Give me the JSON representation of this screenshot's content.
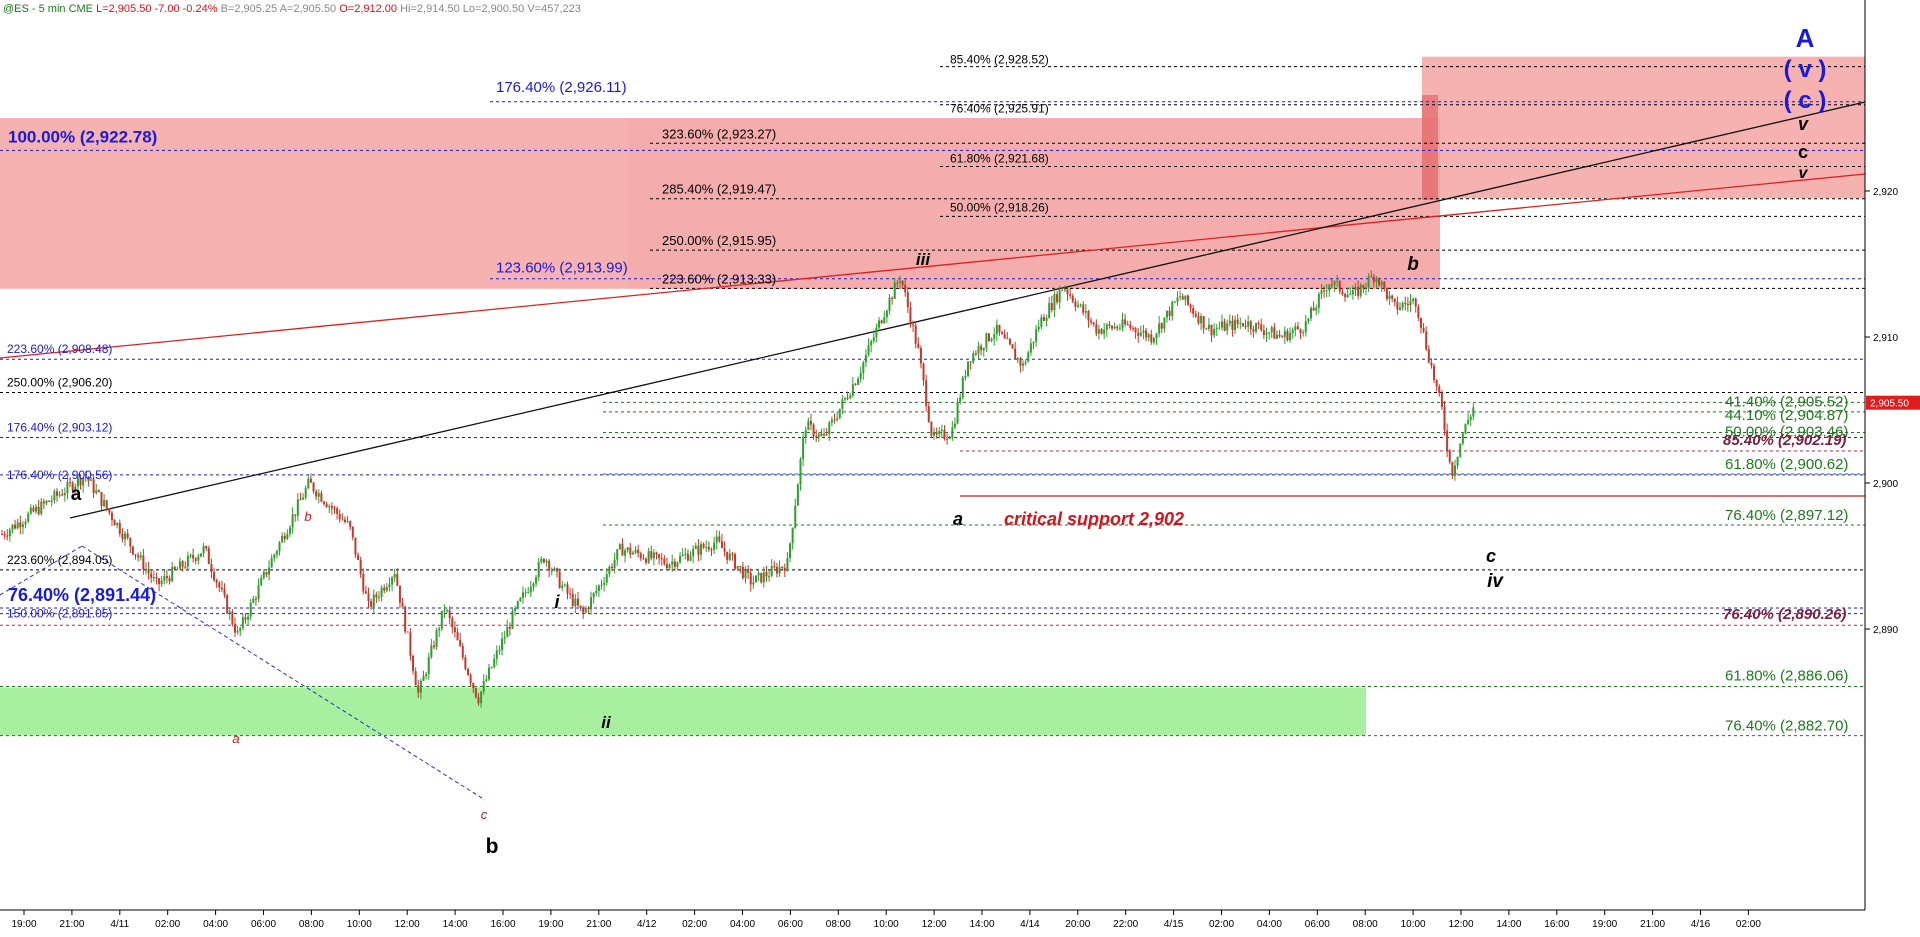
{
  "header": {
    "symbol": "@ES - 5 min",
    "exchange": "CME",
    "last": "L=2,905.50",
    "change": "-7.00",
    "pct": "-0.24%",
    "bid": "B=2,905.25",
    "ask": "A=2,905.50",
    "open": "O=2,912.00",
    "high": "Hi=2,914.50",
    "low": "Lo=2,900.50",
    "volume": "V=457,223"
  },
  "colors": {
    "up_candle": "#2e9e2e",
    "down_candle": "#c0392b",
    "resistance_zone": "#f4a3a3",
    "support_zone": "#a8f0a0",
    "blue_label": "#1a1adb",
    "green_label": "#1c7a1c",
    "maroon_label": "#7a1f3c",
    "red_label": "#d4141c",
    "price_tag": "#e01c1c"
  },
  "chart_data": {
    "type": "candlestick",
    "y_axis": {
      "ticks": [
        2890,
        2900,
        2910,
        2920
      ],
      "tick_labels": [
        "2,890",
        "2,900",
        "2,910",
        "2,920"
      ],
      "ylim": [
        2881,
        2932
      ]
    },
    "x_axis": {
      "tick_labels": [
        "19:00",
        "21:00",
        "4/11",
        "02:00",
        "04:00",
        "06:00",
        "08:00",
        "10:00",
        "12:00",
        "14:00",
        "16:00",
        "19:00",
        "21:00",
        "4/12",
        "02:00",
        "04:00",
        "06:00",
        "08:00",
        "10:00",
        "12:00",
        "14:00",
        "4/14",
        "20:00",
        "22:00",
        "4/15",
        "02:00",
        "04:00",
        "06:00",
        "08:00",
        "10:00",
        "12:00",
        "14:00",
        "16:00",
        "19:00",
        "21:00",
        "4/16",
        "02:00"
      ]
    },
    "last_price": {
      "value": 2905.5,
      "label": "2,905.50"
    },
    "price_path": [
      [
        0,
        2896.5
      ],
      [
        70,
        2900.5
      ],
      [
        130,
        2893.0
      ],
      [
        170,
        2895.5
      ],
      [
        198,
        2889.6
      ],
      [
        228,
        2895.0
      ],
      [
        258,
        2900.0
      ],
      [
        292,
        2897.0
      ],
      [
        308,
        2891.5
      ],
      [
        330,
        2894.0
      ],
      [
        350,
        2885.5
      ],
      [
        372,
        2891.5
      ],
      [
        400,
        2885.2
      ],
      [
        430,
        2891.0
      ],
      [
        456,
        2895.0
      ],
      [
        470,
        2893.0
      ],
      [
        488,
        2891.0
      ],
      [
        520,
        2895.5
      ],
      [
        560,
        2894.5
      ],
      [
        600,
        2896.0
      ],
      [
        630,
        2893.2
      ],
      [
        660,
        2894.5
      ],
      [
        675,
        2904.0
      ],
      [
        690,
        2903.0
      ],
      [
        720,
        2907.5
      ],
      [
        740,
        2911.5
      ],
      [
        755,
        2914.2
      ],
      [
        770,
        2909.0
      ],
      [
        782,
        2903.0
      ],
      [
        798,
        2903.5
      ],
      [
        812,
        2908.5
      ],
      [
        835,
        2910.5
      ],
      [
        858,
        2908.0
      ],
      [
        872,
        2911.0
      ],
      [
        892,
        2913.5
      ],
      [
        920,
        2910.5
      ],
      [
        945,
        2910.8
      ],
      [
        966,
        2910.0
      ],
      [
        990,
        2912.8
      ],
      [
        1015,
        2910.5
      ],
      [
        1045,
        2911.0
      ],
      [
        1075,
        2910.0
      ],
      [
        1095,
        2910.8
      ],
      [
        1115,
        2913.8
      ],
      [
        1135,
        2912.8
      ],
      [
        1154,
        2914.3
      ],
      [
        1170,
        2912.0
      ],
      [
        1188,
        2912.5
      ],
      [
        1198,
        2909.0
      ],
      [
        1210,
        2905.0
      ],
      [
        1218,
        2900.6
      ],
      [
        1228,
        2903.5
      ],
      [
        1238,
        2905.5
      ]
    ],
    "fib_levels": [
      {
        "label": "85.40% (2,928.52)",
        "value": 2928.52,
        "group": "black"
      },
      {
        "label": "176.40% (2,926.11)",
        "value": 2926.11,
        "group": "blue"
      },
      {
        "label": "76.40% (2,925.91)",
        "value": 2925.91,
        "group": "black"
      },
      {
        "label": "323.60% (2,923.27)",
        "value": 2923.27,
        "group": "black"
      },
      {
        "label": "100.00% (2,922.78)",
        "value": 2922.78,
        "group": "blue"
      },
      {
        "label": "61.80% (2,921.68)",
        "value": 2921.68,
        "group": "black"
      },
      {
        "label": "285.40% (2,919.47)",
        "value": 2919.47,
        "group": "black"
      },
      {
        "label": "50.00% (2,918.26)",
        "value": 2918.26,
        "group": "black"
      },
      {
        "label": "250.00% (2,915.95)",
        "value": 2915.95,
        "group": "black"
      },
      {
        "label": "123.60% (2,913.99)",
        "value": 2913.99,
        "group": "blue"
      },
      {
        "label": "223.60% (2,913.33)",
        "value": 2913.33,
        "group": "black"
      },
      {
        "label": "223.60% (2,908.48)",
        "value": 2908.48,
        "group": "blue"
      },
      {
        "label": "250.00% (2,906.20)",
        "value": 2906.2,
        "group": "black"
      },
      {
        "label": "41.40% (2,905.52)",
        "value": 2905.52,
        "group": "green"
      },
      {
        "label": "44.10% (2,904.87)",
        "value": 2904.87,
        "group": "green"
      },
      {
        "label": "50.00% (2,903.46)",
        "value": 2903.46,
        "group": "green"
      },
      {
        "label": "176.40% (2,903.12)",
        "value": 2903.12,
        "group": "blue"
      },
      {
        "label": "85.40% (2,902.19)",
        "value": 2902.19,
        "group": "maroon"
      },
      {
        "label": "61.80% (2,900.62)",
        "value": 2900.62,
        "group": "green"
      },
      {
        "label": "176.40% (2,900.56)",
        "value": 2900.56,
        "group": "blue"
      },
      {
        "label": "76.40% (2,897.12)",
        "value": 2897.12,
        "group": "green"
      },
      {
        "label": "223.60% (2,894.05)",
        "value": 2894.05,
        "group": "black"
      },
      {
        "label": "76.40% (2,891.44)",
        "value": 2891.44,
        "group": "blue"
      },
      {
        "label": "150.00% (2,891.05)",
        "value": 2891.05,
        "group": "blue"
      },
      {
        "label": "76.40% (2,890.26)",
        "value": 2890.26,
        "group": "maroon"
      },
      {
        "label": "61.80% (2,886.06)",
        "value": 2886.06,
        "group": "green"
      },
      {
        "label": "76.40% (2,882.70)",
        "value": 2882.7,
        "group": "green"
      }
    ],
    "zones": [
      {
        "name": "resistance-zone-main",
        "y_range": [
          2913.3,
          2925.0
        ]
      },
      {
        "name": "resistance-zone-upper",
        "y_range": [
          2919.5,
          2929.2
        ]
      },
      {
        "name": "support-zone",
        "y_range": [
          2882.7,
          2886.0
        ]
      }
    ],
    "wave_labels": [
      "A",
      "( v )",
      "( c )",
      "v",
      "c",
      "v",
      "iii",
      "b",
      "a",
      "c",
      "iv",
      "i",
      "ii",
      "a",
      "b",
      "c",
      "a",
      "b"
    ],
    "annotations": {
      "critical_support": "critical support 2,902"
    }
  }
}
